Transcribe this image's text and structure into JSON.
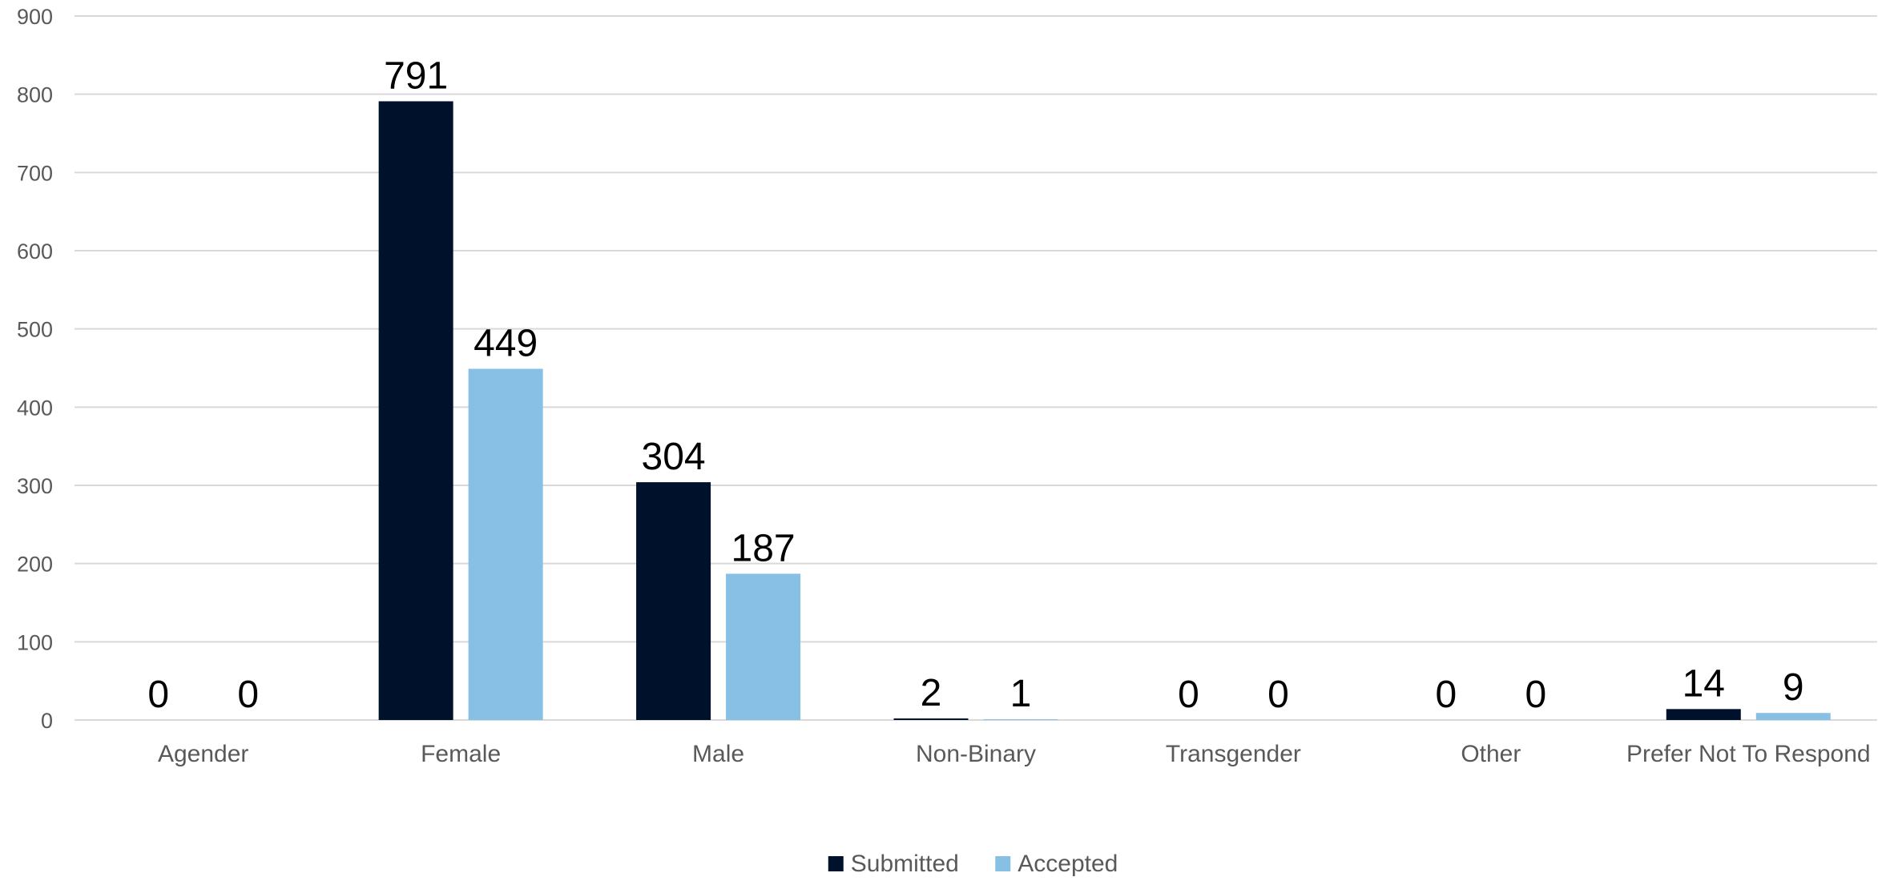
{
  "chart_data": {
    "type": "bar",
    "categories": [
      "Agender",
      "Female",
      "Male",
      "Non-Binary",
      "Transgender",
      "Other",
      "Prefer Not To Respond"
    ],
    "series": [
      {
        "name": "Submitted",
        "values": [
          0,
          791,
          304,
          2,
          0,
          0,
          14
        ],
        "color": "#00112b"
      },
      {
        "name": "Accepted",
        "values": [
          0,
          449,
          187,
          1,
          0,
          0,
          9
        ],
        "color": "#87c0e4"
      }
    ],
    "title": "",
    "xlabel": "",
    "ylabel": "",
    "ylim": [
      0,
      900
    ],
    "yticks": [
      "0",
      "100",
      "200",
      "300",
      "400",
      "500",
      "600",
      "700",
      "800",
      "900"
    ],
    "grid": true,
    "legend": "bottom-center",
    "data_labels": true
  }
}
